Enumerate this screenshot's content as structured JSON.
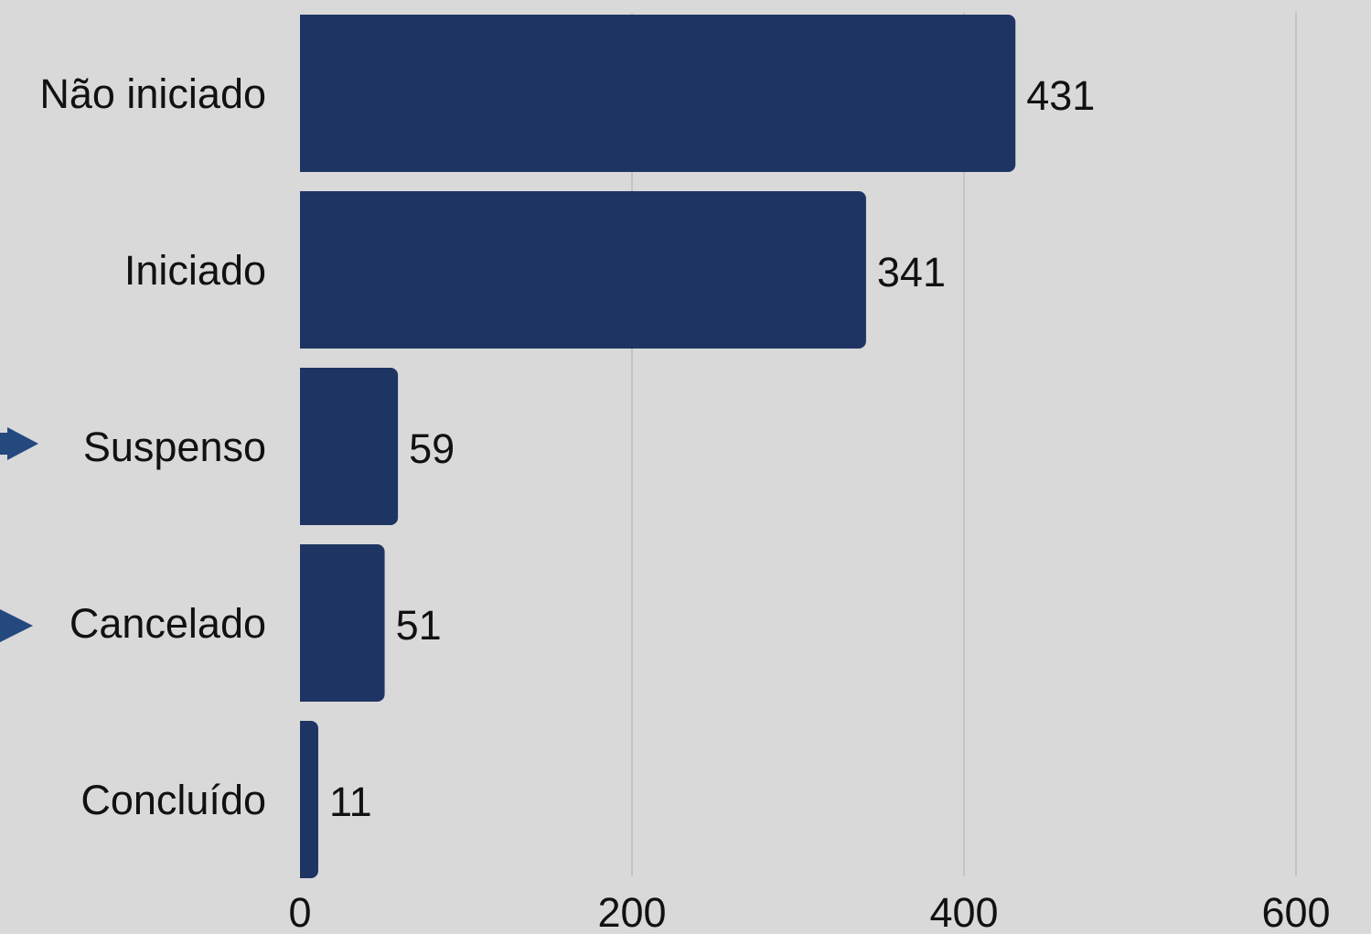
{
  "chart_data": {
    "type": "bar",
    "orientation": "horizontal",
    "title": "",
    "xlabel": "",
    "ylabel": "",
    "categories": [
      "Não iniciado",
      "Iniciado",
      "Suspenso",
      "Cancelado",
      "Concluído"
    ],
    "values": [
      431,
      341,
      59,
      51,
      11
    ],
    "xlim": [
      0,
      600
    ],
    "x_ticks": [
      "0",
      "200",
      "400",
      "600"
    ],
    "highlighted_categories": [
      "Suspenso",
      "Cancelado"
    ],
    "grid": "vertical",
    "legend": "none",
    "colors": {
      "background": "#d9d9d9",
      "bar": "#1e3563",
      "grid": "#c4c4c4",
      "marker": "#24497e",
      "text": "#111111"
    }
  }
}
